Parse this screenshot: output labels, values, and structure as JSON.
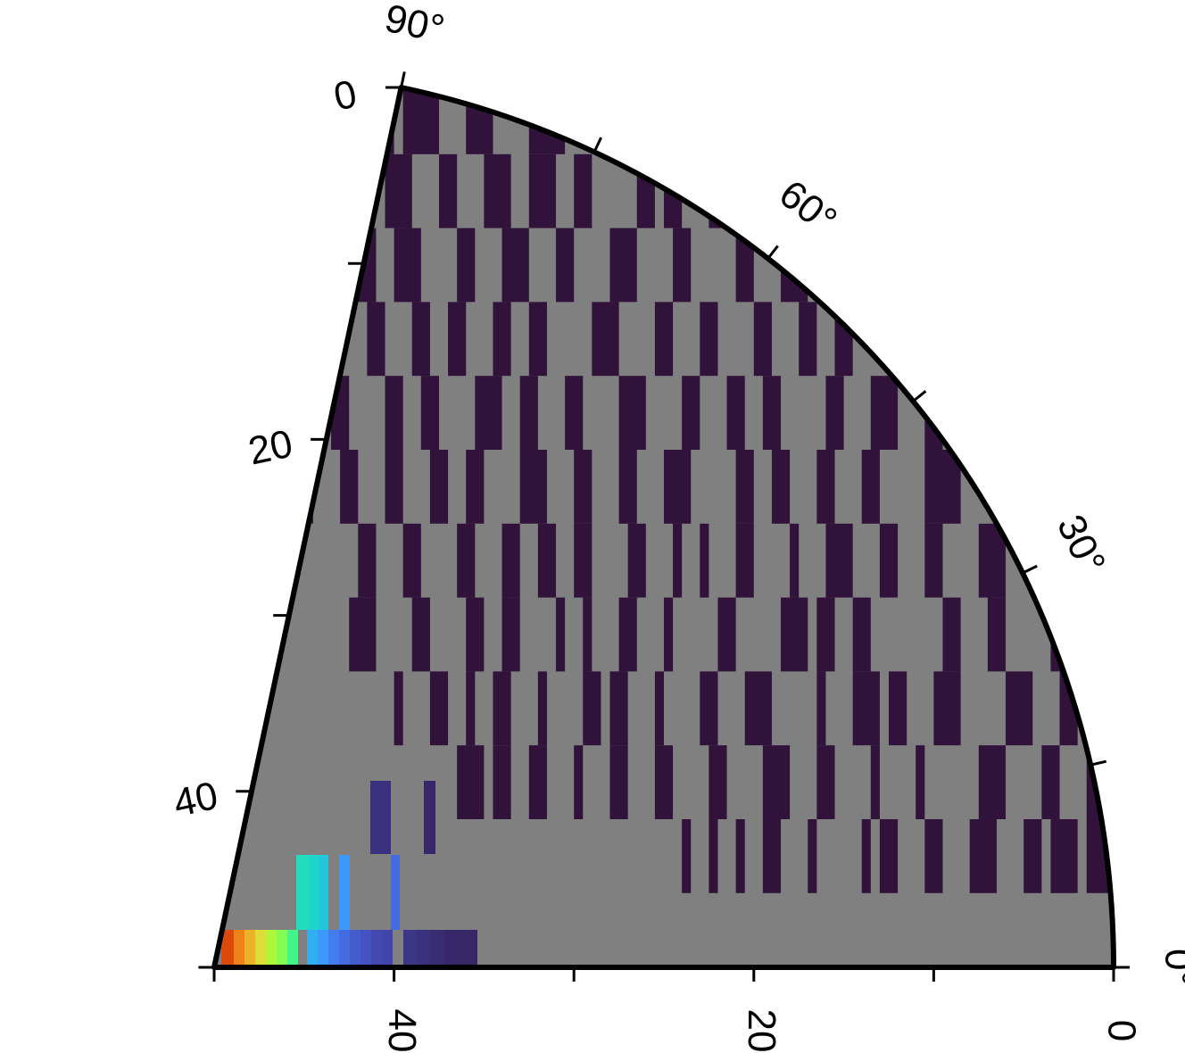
{
  "chart_data": {
    "type": "heatmap",
    "coordinate_system": "polar-sector",
    "colormap": "turbo",
    "background_color": "#808080",
    "theta_range_deg": [
      0,
      90
    ],
    "radius_range": [
      0,
      50
    ],
    "theta_ticks": [
      {
        "value": 0,
        "label": "0°"
      },
      {
        "value": 30,
        "label": "30°"
      },
      {
        "value": 60,
        "label": "60°"
      },
      {
        "value": 90,
        "label": "90°"
      }
    ],
    "radius_ticks_bottom": [
      {
        "value": 0,
        "label": "0"
      },
      {
        "value": 20,
        "label": "20"
      },
      {
        "value": 40,
        "label": "40"
      }
    ],
    "radius_ticks_left": [
      {
        "value": 0,
        "label": "0"
      },
      {
        "value": 20,
        "label": "20"
      },
      {
        "value": 40,
        "label": "40"
      }
    ],
    "radius_minor_ticks": [
      10,
      30,
      50
    ],
    "row_bands": [
      {
        "row": 0,
        "dark_segments": [
          [
            0,
            1.0
          ],
          [
            5,
            9.5
          ],
          [
            10.5,
            12.0
          ],
          [
            15.5,
            16.5
          ],
          [
            17.0,
            18.5
          ],
          [
            19.0,
            20.5
          ],
          [
            24.5,
            25.5
          ],
          [
            26.5,
            28.5
          ],
          [
            30.5,
            32.5
          ],
          [
            34.5,
            36.0
          ],
          [
            37.5,
            39.5
          ],
          [
            40.0,
            42.0
          ],
          [
            42.5,
            44.0
          ],
          [
            45.0,
            47.0
          ],
          [
            48.0,
            49.5
          ]
        ]
      },
      {
        "row": 1,
        "dark_segments": [
          [
            0,
            2.5
          ],
          [
            7.0,
            8.0
          ],
          [
            8.5,
            9.0
          ],
          [
            12.5,
            13.5
          ],
          [
            14.0,
            15.5
          ],
          [
            16.5,
            17.0
          ],
          [
            18.5,
            19.5
          ],
          [
            21.5,
            22.5
          ],
          [
            24.0,
            25.0
          ],
          [
            25.5,
            26.5
          ],
          [
            29.0,
            30.0
          ],
          [
            31.0,
            32.5
          ],
          [
            33.5,
            35.0
          ],
          [
            36.5,
            37.5
          ],
          [
            39.0,
            40.5
          ],
          [
            42.5,
            44.5
          ],
          [
            46.0,
            47.5
          ]
        ]
      },
      {
        "row": 2,
        "dark_segments": [
          [
            0.5,
            3.5
          ],
          [
            6.5,
            8.0
          ],
          [
            9.0,
            10.0
          ],
          [
            13.0,
            14.0
          ],
          [
            14.5,
            16.0
          ],
          [
            17.0,
            18.5
          ],
          [
            20.0,
            21.0
          ],
          [
            23.5,
            24.5
          ],
          [
            26.5,
            28.0
          ],
          [
            30.0,
            31.0
          ],
          [
            32.5,
            34.0
          ],
          [
            35.5,
            36.5
          ],
          [
            38.5,
            40.0
          ],
          [
            41.0,
            42.5
          ],
          [
            44.5,
            46.0
          ],
          [
            47.0,
            48.0
          ]
        ]
      },
      {
        "row": 3,
        "dark_segments": [
          [
            1.5,
            2.5
          ],
          [
            4.0,
            5.5
          ],
          [
            7.5,
            9.0
          ],
          [
            11.0,
            12.5
          ],
          [
            14.5,
            15.5
          ],
          [
            16.5,
            17.5
          ],
          [
            19.0,
            20.0
          ],
          [
            22.0,
            23.0
          ],
          [
            24.5,
            25.5
          ],
          [
            27.5,
            29.0
          ],
          [
            31.5,
            32.5
          ],
          [
            33.5,
            34.5
          ],
          [
            36.0,
            37.0
          ],
          [
            38.0,
            39.0
          ],
          [
            40.5,
            41.5
          ],
          [
            43.0,
            44.5
          ],
          [
            46.5,
            47.5
          ]
        ]
      },
      {
        "row": 4,
        "dark_segments": [
          [
            0.5,
            1.5
          ],
          [
            3.5,
            5.0
          ],
          [
            6.0,
            7.0
          ],
          [
            9.5,
            10.5
          ],
          [
            12.0,
            13.5
          ],
          [
            15.0,
            16.0
          ],
          [
            18.5,
            19.5
          ],
          [
            20.5,
            21.5
          ],
          [
            23.0,
            24.0
          ],
          [
            26.0,
            27.5
          ],
          [
            29.5,
            30.5
          ],
          [
            32.0,
            33.0
          ],
          [
            34.0,
            35.5
          ],
          [
            37.5,
            38.5
          ],
          [
            39.5,
            40.5
          ],
          [
            42.5,
            43.5
          ],
          [
            45.5,
            47.0
          ]
        ]
      },
      {
        "row": 5,
        "dark_segments": [
          [
            2.0,
            3.5
          ],
          [
            5.0,
            6.0
          ],
          [
            8.5,
            10.5
          ],
          [
            13.0,
            14.0
          ],
          [
            15.5,
            16.5
          ],
          [
            18.0,
            19.0
          ],
          [
            20.0,
            21.0
          ],
          [
            23.5,
            25.0
          ],
          [
            26.5,
            27.5
          ],
          [
            29.0,
            30.0
          ],
          [
            31.5,
            33.0
          ],
          [
            35.0,
            36.0
          ],
          [
            37.0,
            38.0
          ],
          [
            39.5,
            40.5
          ],
          [
            42.0,
            43.0
          ],
          [
            44.5,
            46.0
          ],
          [
            47.5,
            48.5
          ]
        ]
      },
      {
        "row": 6,
        "dark_segments": [
          [
            1.5,
            2.0
          ],
          [
            3.0,
            4.0
          ],
          [
            6.0,
            7.5
          ],
          [
            9.5,
            10.5
          ],
          [
            12.0,
            13.0
          ],
          [
            14.5,
            16.0
          ],
          [
            17.5,
            18.0
          ],
          [
            20.0,
            21.0
          ],
          [
            22.5,
            23.0
          ],
          [
            24.0,
            24.5
          ],
          [
            26.0,
            27.0
          ],
          [
            29.0,
            30.0
          ],
          [
            31.0,
            32.0
          ],
          [
            33.0,
            34.0
          ],
          [
            35.5,
            36.5
          ],
          [
            38.5,
            39.5
          ],
          [
            41.0,
            42.0
          ]
        ]
      },
      {
        "row": 7,
        "dark_segments": [
          [
            0.5,
            1.0
          ],
          [
            2.5,
            3.5
          ],
          [
            6.0,
            7.0
          ],
          [
            8.5,
            9.5
          ],
          [
            13.5,
            14.5
          ],
          [
            15.5,
            16.5
          ],
          [
            17.0,
            18.5
          ],
          [
            21.0,
            22.0
          ],
          [
            24.5,
            25.0
          ],
          [
            26.5,
            27.5
          ],
          [
            29.0,
            29.5
          ],
          [
            30.5,
            31.0
          ],
          [
            33.0,
            34.0
          ],
          [
            35.0,
            36.0
          ],
          [
            38.0,
            39.0
          ],
          [
            41.0,
            42.5
          ]
        ]
      },
      {
        "row": 8,
        "dark_segments": [
          [
            2.0,
            3.0
          ],
          [
            4.5,
            6.0
          ],
          [
            8.5,
            10.0
          ],
          [
            11.5,
            12.5
          ],
          [
            13.0,
            14.5
          ],
          [
            16.0,
            16.5
          ],
          [
            19.0,
            20.5
          ],
          [
            22.0,
            23.0
          ],
          [
            25.0,
            25.5
          ],
          [
            27.0,
            28.0
          ],
          [
            28.5,
            29.5
          ],
          [
            31.5,
            32.0
          ],
          [
            33.5,
            34.5
          ],
          [
            35.5,
            36.0
          ],
          [
            37.0,
            38.0
          ],
          [
            39.5,
            40.0
          ]
        ]
      },
      {
        "row": 9,
        "dark_segments": [
          [
            0.5,
            1.5
          ],
          [
            3.0,
            4.0
          ],
          [
            6.0,
            7.5
          ],
          [
            10.5,
            11.0
          ],
          [
            13.0,
            13.5
          ],
          [
            15.5,
            16.5
          ],
          [
            18.0,
            19.5
          ],
          [
            21.5,
            22.5
          ],
          [
            24.5,
            25.5
          ],
          [
            27.0,
            28.0
          ],
          [
            29.5,
            30.0
          ],
          [
            31.5,
            32.5
          ],
          [
            33.5,
            34.5
          ],
          [
            35.0,
            36.5
          ]
        ]
      },
      {
        "row": 10,
        "dark_segments": [
          [
            0.0,
            1.5
          ],
          [
            2.0,
            3.5
          ],
          [
            4.0,
            5.0
          ],
          [
            6.5,
            8.0
          ],
          [
            9.5,
            10.5
          ],
          [
            12.0,
            13.0
          ],
          [
            13.5,
            14.0
          ],
          [
            16.5,
            17.0
          ],
          [
            18.5,
            19.5
          ],
          [
            20.5,
            21.0
          ],
          [
            22.0,
            22.5
          ],
          [
            23.5,
            24.0
          ]
        ]
      }
    ],
    "bottom_rows_colored": [
      {
        "row": 11,
        "cells": [
          [
            38.0,
            38.5,
            0.08
          ],
          [
            37.5,
            38.0,
            0.1
          ],
          [
            37.0,
            37.5,
            0.12
          ]
        ]
      },
      {
        "row": 12,
        "cells": [
          [
            46.5,
            47.5,
            0.05
          ],
          [
            45.0,
            46.5,
            0.05
          ],
          [
            43.5,
            45.0,
            0.05
          ],
          [
            42.5,
            43.5,
            0.05
          ],
          [
            40.5,
            42.5,
            0.05
          ],
          [
            40.0,
            40.5,
            0.06
          ],
          [
            39.5,
            40.0,
            0.08
          ],
          [
            38.0,
            39.5,
            0.12
          ],
          [
            37.5,
            38.0,
            0.15
          ],
          [
            37.0,
            37.5,
            0.2
          ],
          [
            36.5,
            37.0,
            0.25
          ]
        ]
      }
    ]
  }
}
